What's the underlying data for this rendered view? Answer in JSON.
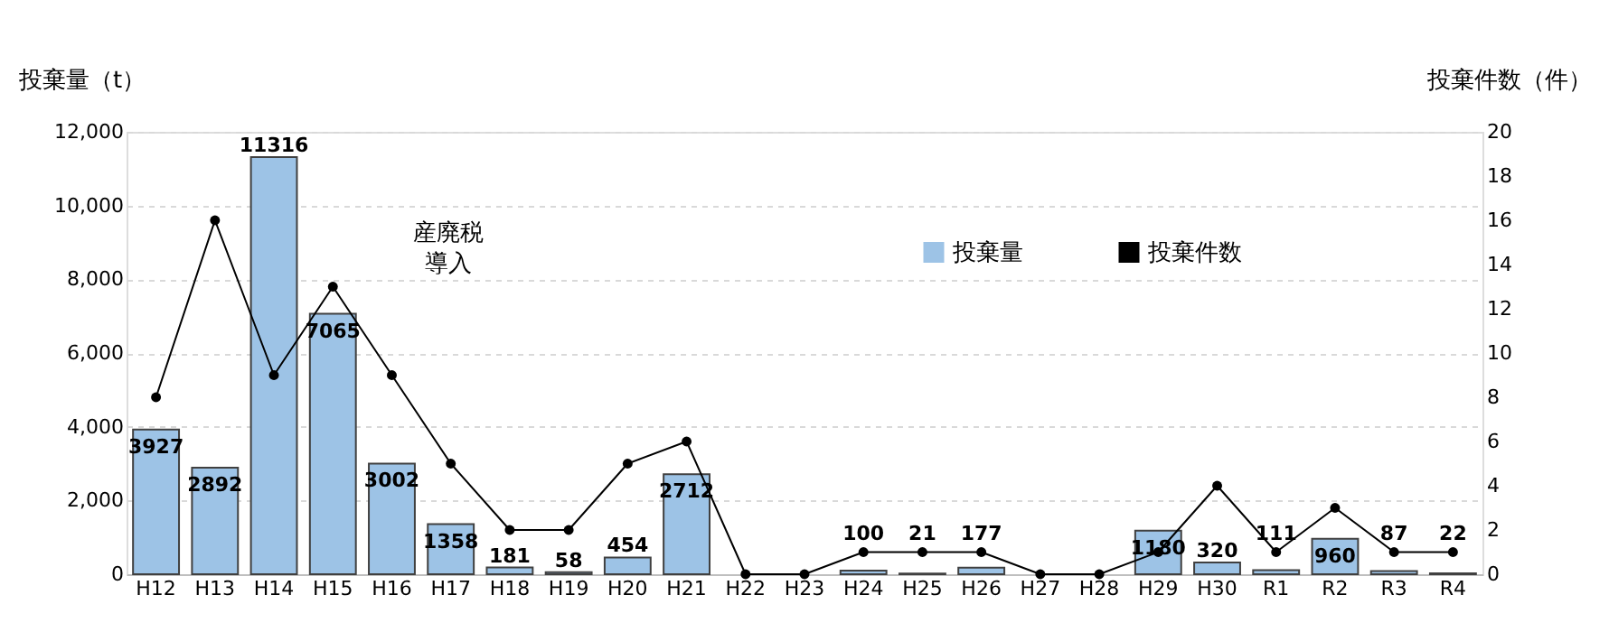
{
  "chart_data": {
    "type": "bar",
    "ylabel": "投棄量（t）",
    "y2label": "投棄件数（件）",
    "categories": [
      "H12",
      "H13",
      "H14",
      "H15",
      "H16",
      "H17",
      "H18",
      "H19",
      "H20",
      "H21",
      "H22",
      "H23",
      "H24",
      "H25",
      "H26",
      "H27",
      "H28",
      "H29",
      "H30",
      "R1",
      "R2",
      "R3",
      "R4"
    ],
    "series": [
      {
        "name": "投棄量",
        "color": "#9dc3e6",
        "values": [
          3927,
          2892,
          11316,
          7065,
          3002,
          1358,
          181,
          58,
          454,
          2712,
          null,
          null,
          100,
          21,
          177,
          null,
          null,
          1180,
          320,
          111,
          960,
          87,
          22
        ],
        "value_labels": [
          "3927",
          "2892",
          "11316",
          "7065",
          "3002",
          "1358",
          "181",
          "58",
          "454",
          "2712",
          null,
          null,
          "100",
          "21",
          "177",
          null,
          null,
          "1180",
          "320",
          "111",
          "960",
          "87",
          "22"
        ]
      },
      {
        "name": "投棄件数",
        "type": "line",
        "axis": "y2",
        "color": "#000000",
        "marker": "circle",
        "values": [
          8,
          16,
          9,
          13,
          9,
          5,
          2,
          2,
          5,
          6,
          0,
          0,
          1,
          1,
          1,
          0,
          0,
          1,
          4,
          1,
          3,
          1,
          1
        ]
      }
    ],
    "ylim": [
      0,
      12000
    ],
    "yticks": [
      0,
      {
        "value": 2000,
        "label": "2,000"
      },
      {
        "value": 4000,
        "label": "4,000"
      },
      {
        "value": 6000,
        "label": "6,000"
      },
      {
        "value": 8000,
        "label": "8,000"
      },
      {
        "value": 10000,
        "label": "10,000"
      },
      {
        "value": 12000,
        "label": "12,000"
      }
    ],
    "y2lim": [
      0,
      20
    ],
    "y2ticks": [
      0,
      2,
      4,
      6,
      8,
      10,
      12,
      14,
      16,
      18,
      20
    ],
    "grid": "y",
    "legend": "top right",
    "annotations": [
      "産廃税",
      "導入"
    ]
  }
}
